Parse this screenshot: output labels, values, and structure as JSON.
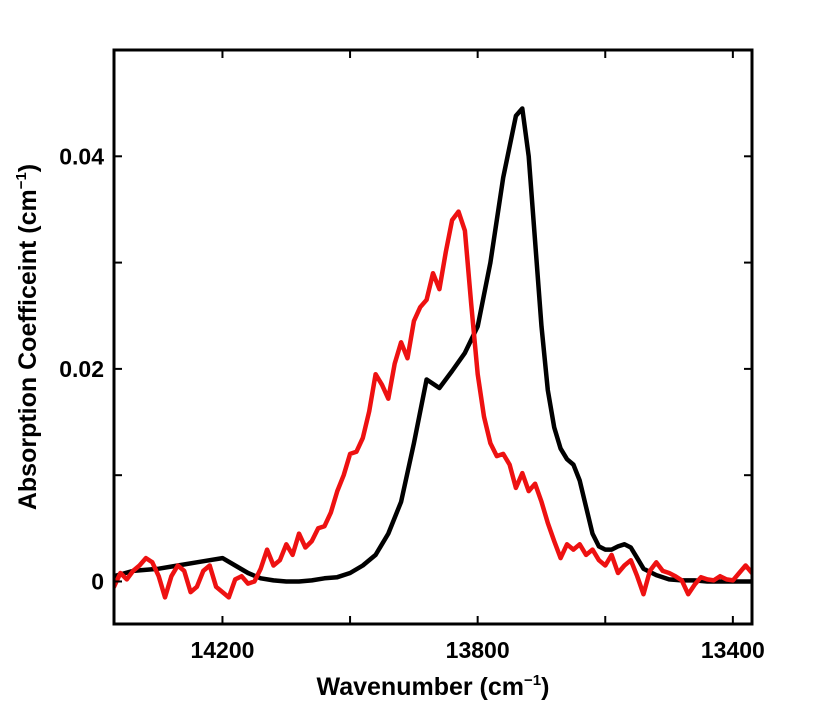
{
  "chart_data": {
    "type": "line",
    "title": "",
    "xlabel": "Wavenumber (cm",
    "xlabel_suffix": ")",
    "ylabel": "Absorption Coefficeint (cm",
    "ylabel_suffix": ")",
    "unit_superscript": "−1",
    "xlim": [
      14370,
      13370
    ],
    "ylim": [
      -0.004,
      0.05
    ],
    "x_reversed": true,
    "xticks": [
      14200,
      13800,
      13400
    ],
    "xtick_labels": [
      "14200",
      "13800",
      "13400"
    ],
    "x_minor_ticks": [
      14000,
      13600
    ],
    "yticks": [
      0,
      0.02,
      0.04
    ],
    "ytick_labels": [
      "0",
      "0.02",
      "0.04"
    ],
    "y_minor_ticks": [
      0.01,
      0.03
    ],
    "grid": false,
    "series": [
      {
        "name": "black",
        "color": "#000000",
        "x": [
          14370,
          14340,
          14300,
          14270,
          14240,
          14220,
          14200,
          14180,
          14160,
          14140,
          14120,
          14100,
          14080,
          14060,
          14040,
          14020,
          14000,
          13980,
          13960,
          13940,
          13920,
          13900,
          13880,
          13860,
          13840,
          13820,
          13800,
          13780,
          13760,
          13740,
          13730,
          13720,
          13710,
          13700,
          13690,
          13680,
          13670,
          13660,
          13650,
          13640,
          13630,
          13620,
          13610,
          13600,
          13590,
          13580,
          13570,
          13560,
          13550,
          13540,
          13520,
          13500,
          13480,
          13460,
          13440,
          13420,
          13400,
          13370
        ],
        "y": [
          0.0005,
          0.001,
          0.0012,
          0.0015,
          0.0018,
          0.002,
          0.0022,
          0.0015,
          0.0008,
          0.0003,
          0.0001,
          0.0,
          0.0,
          0.0001,
          0.0003,
          0.0004,
          0.0008,
          0.0015,
          0.0025,
          0.0045,
          0.0075,
          0.013,
          0.019,
          0.0182,
          0.0198,
          0.0215,
          0.024,
          0.03,
          0.038,
          0.0438,
          0.0445,
          0.04,
          0.032,
          0.024,
          0.018,
          0.0145,
          0.0125,
          0.0115,
          0.011,
          0.0095,
          0.007,
          0.0045,
          0.0033,
          0.003,
          0.003,
          0.0033,
          0.0035,
          0.0032,
          0.0022,
          0.0012,
          0.0006,
          0.0002,
          0.0001,
          0.0001,
          0.0,
          0.0,
          0.0,
          0.0
        ]
      },
      {
        "name": "red",
        "color": "#ee1111",
        "x": [
          14370,
          14360,
          14350,
          14340,
          14330,
          14320,
          14310,
          14300,
          14290,
          14280,
          14270,
          14260,
          14250,
          14240,
          14230,
          14220,
          14210,
          14200,
          14190,
          14180,
          14170,
          14160,
          14150,
          14140,
          14130,
          14120,
          14110,
          14100,
          14090,
          14080,
          14070,
          14060,
          14050,
          14040,
          14030,
          14020,
          14010,
          14000,
          13990,
          13980,
          13970,
          13960,
          13950,
          13940,
          13930,
          13920,
          13910,
          13900,
          13890,
          13880,
          13870,
          13860,
          13850,
          13840,
          13830,
          13820,
          13810,
          13800,
          13790,
          13780,
          13770,
          13760,
          13750,
          13740,
          13730,
          13720,
          13710,
          13700,
          13690,
          13680,
          13670,
          13660,
          13650,
          13640,
          13630,
          13620,
          13610,
          13600,
          13590,
          13580,
          13570,
          13560,
          13550,
          13540,
          13530,
          13520,
          13510,
          13500,
          13490,
          13480,
          13470,
          13460,
          13450,
          13440,
          13430,
          13420,
          13410,
          13400,
          13390,
          13380,
          13370
        ],
        "y": [
          -0.0005,
          0.0008,
          0.0002,
          0.001,
          0.0015,
          0.0022,
          0.0018,
          0.0005,
          -0.0015,
          0.0005,
          0.0015,
          0.001,
          -0.001,
          -0.0005,
          0.001,
          0.0015,
          -0.0005,
          -0.001,
          -0.0015,
          0.0002,
          0.0005,
          -0.0002,
          0.0,
          0.0012,
          0.003,
          0.0015,
          0.002,
          0.0035,
          0.0025,
          0.0045,
          0.0032,
          0.0038,
          0.005,
          0.0052,
          0.0065,
          0.0085,
          0.01,
          0.012,
          0.0122,
          0.0135,
          0.016,
          0.0195,
          0.0185,
          0.0172,
          0.0205,
          0.0225,
          0.021,
          0.0245,
          0.0258,
          0.0265,
          0.029,
          0.0275,
          0.031,
          0.034,
          0.0348,
          0.033,
          0.026,
          0.0195,
          0.0155,
          0.013,
          0.0118,
          0.012,
          0.011,
          0.0088,
          0.0102,
          0.0085,
          0.0092,
          0.0075,
          0.0055,
          0.0038,
          0.0022,
          0.0035,
          0.003,
          0.0035,
          0.0025,
          0.003,
          0.002,
          0.0015,
          0.0025,
          0.0008,
          0.0015,
          0.002,
          0.0005,
          -0.0012,
          0.001,
          0.0018,
          0.001,
          0.0008,
          0.0005,
          0.0001,
          -0.0012,
          -0.0003,
          0.0004,
          0.0002,
          0.0001,
          0.0005,
          0.0002,
          0.0001,
          0.0008,
          0.0015,
          0.0008
        ]
      }
    ]
  }
}
